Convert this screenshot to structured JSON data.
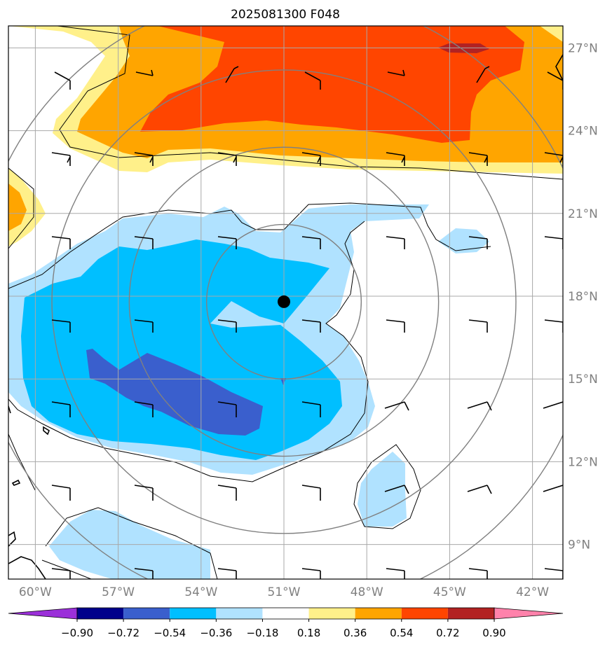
{
  "title": "2025081300 F048",
  "map": {
    "center_marker": {
      "lon": -51.0,
      "lat": 17.8
    },
    "lon_ticks": [
      {
        "lon": -60,
        "label": "60°W"
      },
      {
        "lon": -57,
        "label": "57°W"
      },
      {
        "lon": -54,
        "label": "54°W"
      },
      {
        "lon": -51,
        "label": "51°W"
      },
      {
        "lon": -48,
        "label": "48°W"
      },
      {
        "lon": -45,
        "label": "45°W"
      },
      {
        "lon": -42,
        "label": "42°W"
      }
    ],
    "lat_ticks": [
      {
        "lat": 9,
        "label": "9°N"
      },
      {
        "lat": 12,
        "label": "12°N"
      },
      {
        "lat": 15,
        "label": "15°N"
      },
      {
        "lat": 18,
        "label": "18°N"
      },
      {
        "lat": 21,
        "label": "21°N"
      },
      {
        "lat": 24,
        "label": "24°N"
      },
      {
        "lat": 27,
        "label": "27°N"
      }
    ],
    "range_rings_deg": [
      2.8,
      5.6,
      8.4,
      11.2
    ]
  },
  "colorbar": {
    "labels": [
      "−0.90",
      "−0.72",
      "−0.54",
      "−0.36",
      "−0.18",
      "0.18",
      "0.36",
      "0.54",
      "0.72",
      "0.90"
    ],
    "colors": [
      "#9b30d9",
      "#00008b",
      "#3a5fcd",
      "#00bfff",
      "#b0e2ff",
      "#ffffff",
      "#fff08a",
      "#ffa500",
      "#ff4500",
      "#b22222",
      "#ff82ab"
    ]
  },
  "fill_colors": {
    "pos1": "#fff08a",
    "pos2": "#ffa500",
    "pos3": "#ff4500",
    "pos4": "#b22222",
    "neg1": "#b0e2ff",
    "neg2": "#00bfff",
    "neg3": "#3a5fcd"
  }
}
